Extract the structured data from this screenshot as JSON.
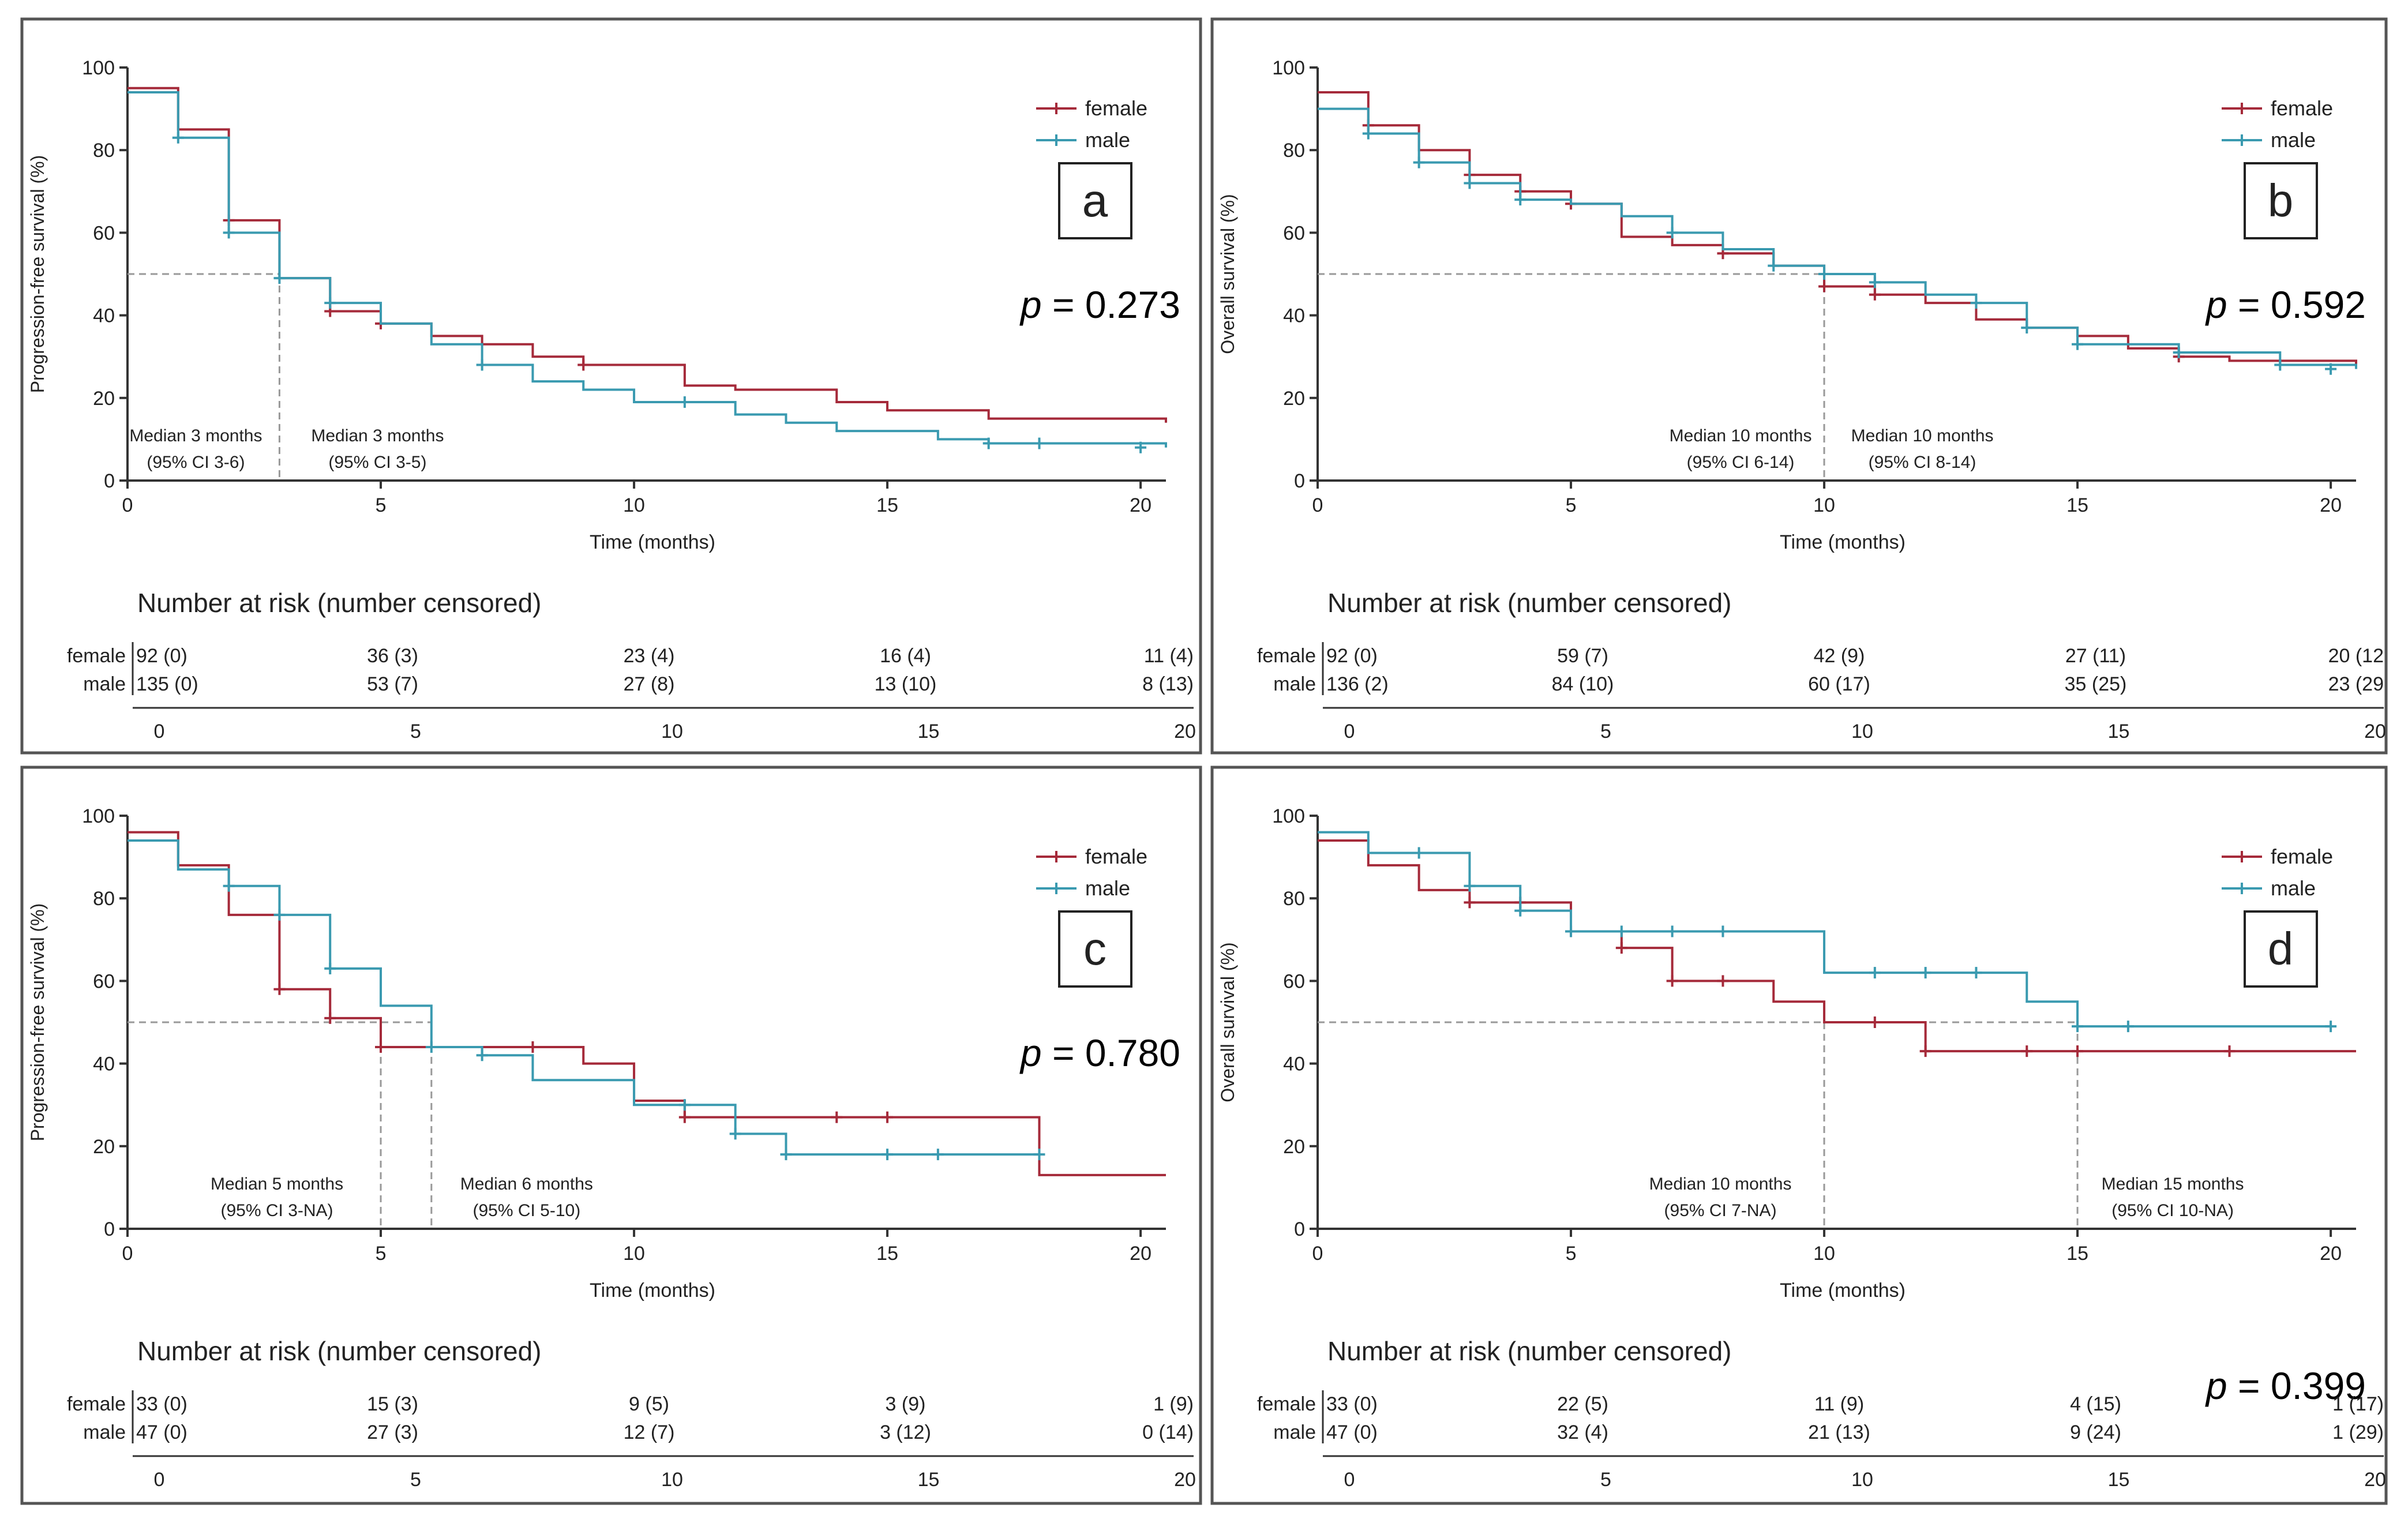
{
  "colors": {
    "female": "#a52a3a",
    "male": "#3a9ab0",
    "median_line": "#999999",
    "text": "#222222"
  },
  "chart_data": [
    {
      "type": "line",
      "panel": "a",
      "ylabel": "Progression-free survival (%)",
      "xlabel": "Time (months)",
      "xlim": [
        0,
        20.5
      ],
      "ylim": [
        0,
        100
      ],
      "xticks": [
        "0",
        "5",
        "10",
        "15",
        "20"
      ],
      "yticks": [
        "0",
        "20",
        "40",
        "60",
        "80",
        "100"
      ],
      "legend": {
        "female": "female",
        "male": "male",
        "position": "top-right"
      },
      "pvalue_prefix": "p",
      "pvalue": "= 0.273",
      "median_y": 50,
      "medians": [
        {
          "x": 3,
          "line1": "Median 3 months",
          "line2": "(95% CI 3-6)"
        },
        {
          "x": 3,
          "line1": "Median 3 months",
          "line2": "(95% CI 3-5)"
        }
      ],
      "series": [
        {
          "name": "female",
          "steps": [
            [
              0,
              95
            ],
            [
              1,
              85
            ],
            [
              2,
              63
            ],
            [
              3,
              49
            ],
            [
              4,
              41
            ],
            [
              5,
              38
            ],
            [
              6,
              35
            ],
            [
              7,
              33
            ],
            [
              8,
              30
            ],
            [
              9,
              28
            ],
            [
              11,
              23
            ],
            [
              12,
              22
            ],
            [
              14,
              19
            ],
            [
              15,
              17
            ],
            [
              17,
              15
            ],
            [
              20.5,
              14
            ]
          ],
          "censored": [
            [
              2,
              63
            ],
            [
              4,
              41
            ],
            [
              5,
              38
            ],
            [
              9,
              28
            ]
          ]
        },
        {
          "name": "male",
          "steps": [
            [
              0,
              94
            ],
            [
              1,
              83
            ],
            [
              2,
              60
            ],
            [
              3,
              49
            ],
            [
              4,
              43
            ],
            [
              5,
              38
            ],
            [
              6,
              33
            ],
            [
              7,
              28
            ],
            [
              8,
              24
            ],
            [
              9,
              22
            ],
            [
              10,
              19
            ],
            [
              12,
              16
            ],
            [
              13,
              14
            ],
            [
              14,
              12
            ],
            [
              16,
              10
            ],
            [
              17,
              9
            ],
            [
              20.5,
              8
            ]
          ],
          "censored": [
            [
              1,
              83
            ],
            [
              2,
              60
            ],
            [
              3,
              49
            ],
            [
              4,
              43
            ],
            [
              7,
              28
            ],
            [
              11,
              19
            ],
            [
              17,
              9
            ],
            [
              18,
              9
            ],
            [
              20,
              8
            ]
          ]
        }
      ],
      "risk": {
        "title": "Number at risk (number censored)",
        "female_label": "female",
        "male_label": "male",
        "female": [
          "92 (0)",
          "36 (3)",
          "23 (4)",
          "16 (4)",
          "11 (4)"
        ],
        "male": [
          "135 (0)",
          "53 (7)",
          "27 (8)",
          "13 (10)",
          "8 (13)"
        ],
        "xticks": [
          "0",
          "5",
          "10",
          "15",
          "20"
        ]
      }
    },
    {
      "type": "line",
      "panel": "b",
      "ylabel": "Overall survival (%)",
      "xlabel": "Time (months)",
      "xlim": [
        0,
        20.5
      ],
      "ylim": [
        0,
        100
      ],
      "xticks": [
        "0",
        "5",
        "10",
        "15",
        "20"
      ],
      "yticks": [
        "0",
        "20",
        "40",
        "60",
        "80",
        "100"
      ],
      "legend": {
        "female": "female",
        "male": "male",
        "position": "top-right"
      },
      "pvalue_prefix": "p",
      "pvalue": "= 0.592",
      "median_y": 50,
      "medians": [
        {
          "x": 10,
          "line1": "Median 10 months",
          "line2": "(95% CI 6-14)"
        },
        {
          "x": 10,
          "line1": "Median 10 months",
          "line2": "(95% CI 8-14)"
        }
      ],
      "series": [
        {
          "name": "female",
          "steps": [
            [
              0,
              94
            ],
            [
              1,
              86
            ],
            [
              2,
              80
            ],
            [
              3,
              74
            ],
            [
              4,
              70
            ],
            [
              5,
              67
            ],
            [
              6,
              59
            ],
            [
              7,
              57
            ],
            [
              8,
              55
            ],
            [
              9,
              52
            ],
            [
              10,
              47
            ],
            [
              11,
              45
            ],
            [
              12,
              43
            ],
            [
              13,
              39
            ],
            [
              14,
              37
            ],
            [
              15,
              35
            ],
            [
              16,
              32
            ],
            [
              17,
              30
            ],
            [
              18,
              29
            ],
            [
              20.5,
              28
            ]
          ],
          "censored": [
            [
              1,
              86
            ],
            [
              3,
              74
            ],
            [
              4,
              70
            ],
            [
              5,
              67
            ],
            [
              8,
              55
            ],
            [
              10,
              47
            ],
            [
              11,
              45
            ],
            [
              17,
              30
            ]
          ]
        },
        {
          "name": "male",
          "steps": [
            [
              0,
              90
            ],
            [
              1,
              84
            ],
            [
              2,
              77
            ],
            [
              3,
              72
            ],
            [
              4,
              68
            ],
            [
              5,
              67
            ],
            [
              6,
              64
            ],
            [
              7,
              60
            ],
            [
              8,
              56
            ],
            [
              9,
              52
            ],
            [
              10,
              50
            ],
            [
              11,
              48
            ],
            [
              12,
              45
            ],
            [
              13,
              43
            ],
            [
              14,
              37
            ],
            [
              15,
              33
            ],
            [
              17,
              31
            ],
            [
              19,
              28
            ],
            [
              20.5,
              27
            ]
          ],
          "censored": [
            [
              1,
              84
            ],
            [
              2,
              77
            ],
            [
              3,
              72
            ],
            [
              4,
              68
            ],
            [
              7,
              60
            ],
            [
              9,
              52
            ],
            [
              10,
              50
            ],
            [
              11,
              48
            ],
            [
              13,
              43
            ],
            [
              14,
              37
            ],
            [
              15,
              33
            ],
            [
              17,
              31
            ],
            [
              19,
              28
            ],
            [
              20,
              27
            ]
          ]
        }
      ],
      "risk": {
        "title": "Number at risk (number censored)",
        "female_label": "female",
        "male_label": "male",
        "female": [
          "92 (0)",
          "59 (7)",
          "42 (9)",
          "27 (11)",
          "20 (12"
        ],
        "male": [
          "136 (2)",
          "84 (10)",
          "60 (17)",
          "35 (25)",
          "23 (29"
        ],
        "xticks": [
          "0",
          "5",
          "10",
          "15",
          "20"
        ]
      }
    },
    {
      "type": "line",
      "panel": "c",
      "ylabel": "Progression-free survival (%)",
      "xlabel": "Time (months)",
      "xlim": [
        0,
        20.5
      ],
      "ylim": [
        0,
        100
      ],
      "xticks": [
        "0",
        "5",
        "10",
        "15",
        "20"
      ],
      "yticks": [
        "0",
        "20",
        "40",
        "60",
        "80",
        "100"
      ],
      "legend": {
        "female": "female",
        "male": "male",
        "position": "top-right"
      },
      "pvalue_prefix": "p",
      "pvalue": "= 0.780",
      "median_y": 50,
      "medians": [
        {
          "x": 5,
          "line1": "Median 5 months",
          "line2": "(95% CI 3-NA)"
        },
        {
          "x": 6,
          "line1": "Median 6 months",
          "line2": "(95% CI 5-10)"
        }
      ],
      "series": [
        {
          "name": "female",
          "steps": [
            [
              0,
              96
            ],
            [
              1,
              88
            ],
            [
              2,
              76
            ],
            [
              3,
              58
            ],
            [
              4,
              51
            ],
            [
              5,
              44
            ],
            [
              6,
              44
            ],
            [
              8,
              44
            ],
            [
              9,
              40
            ],
            [
              10,
              31
            ],
            [
              11,
              27
            ],
            [
              15,
              27
            ],
            [
              18,
              13
            ],
            [
              20.5,
              13
            ]
          ],
          "censored": [
            [
              3,
              58
            ],
            [
              4,
              51
            ],
            [
              5,
              44
            ],
            [
              8,
              44
            ],
            [
              11,
              27
            ],
            [
              14,
              27
            ],
            [
              15,
              27
            ]
          ]
        },
        {
          "name": "male",
          "steps": [
            [
              0,
              94
            ],
            [
              1,
              87
            ],
            [
              2,
              83
            ],
            [
              3,
              76
            ],
            [
              4,
              63
            ],
            [
              5,
              54
            ],
            [
              6,
              44
            ],
            [
              7,
              42
            ],
            [
              8,
              36
            ],
            [
              10,
              30
            ],
            [
              11,
              30
            ],
            [
              12,
              23
            ],
            [
              13,
              18
            ],
            [
              18,
              18
            ]
          ],
          "censored": [
            [
              2,
              83
            ],
            [
              3,
              76
            ],
            [
              4,
              63
            ],
            [
              6,
              44
            ],
            [
              7,
              42
            ],
            [
              11,
              30
            ],
            [
              12,
              23
            ],
            [
              13,
              18
            ],
            [
              15,
              18
            ],
            [
              16,
              18
            ],
            [
              18,
              18
            ]
          ]
        }
      ],
      "risk": {
        "title": "Number at risk (number censored)",
        "female_label": "female",
        "male_label": "male",
        "female": [
          "33 (0)",
          "15 (3)",
          "9 (5)",
          "3 (9)",
          "1 (9)"
        ],
        "male": [
          "47 (0)",
          "27 (3)",
          "12 (7)",
          "3 (12)",
          "0 (14)"
        ],
        "xticks": [
          "0",
          "5",
          "10",
          "15",
          "20"
        ]
      }
    },
    {
      "type": "line",
      "panel": "d",
      "ylabel": "Overall survival (%)",
      "xlabel": "Time (months)",
      "xlim": [
        0,
        20.5
      ],
      "ylim": [
        0,
        100
      ],
      "xticks": [
        "0",
        "5",
        "10",
        "15",
        "20"
      ],
      "yticks": [
        "0",
        "20",
        "40",
        "60",
        "80",
        "100"
      ],
      "legend": {
        "female": "female",
        "male": "male",
        "position": "top-right"
      },
      "pvalue_prefix": "p",
      "pvalue": "= 0.399",
      "median_y": 50,
      "medians": [
        {
          "x": 10,
          "line1": "Median 10 months",
          "line2": "(95% CI 7-NA)"
        },
        {
          "x": 15,
          "line1": "Median 15 months",
          "line2": "(95% CI 10-NA)"
        }
      ],
      "series": [
        {
          "name": "female",
          "steps": [
            [
              0,
              94
            ],
            [
              1,
              88
            ],
            [
              2,
              82
            ],
            [
              3,
              79
            ],
            [
              5,
              72
            ],
            [
              6,
              68
            ],
            [
              7,
              60
            ],
            [
              9,
              55
            ],
            [
              10,
              50
            ],
            [
              12,
              43
            ],
            [
              20.5,
              43
            ]
          ],
          "censored": [
            [
              3,
              79
            ],
            [
              4,
              79
            ],
            [
              5,
              72
            ],
            [
              6,
              68
            ],
            [
              7,
              60
            ],
            [
              8,
              60
            ],
            [
              11,
              50
            ],
            [
              12,
              43
            ],
            [
              14,
              43
            ],
            [
              15,
              43
            ],
            [
              18,
              43
            ]
          ]
        },
        {
          "name": "male",
          "steps": [
            [
              0,
              96
            ],
            [
              1,
              91
            ],
            [
              3,
              83
            ],
            [
              4,
              77
            ],
            [
              5,
              72
            ],
            [
              7,
              72
            ],
            [
              10,
              62
            ],
            [
              14,
              55
            ],
            [
              15,
              49
            ],
            [
              20,
              49
            ]
          ],
          "censored": [
            [
              2,
              91
            ],
            [
              3,
              83
            ],
            [
              4,
              77
            ],
            [
              5,
              72
            ],
            [
              6,
              72
            ],
            [
              7,
              72
            ],
            [
              8,
              72
            ],
            [
              11,
              62
            ],
            [
              12,
              62
            ],
            [
              13,
              62
            ],
            [
              15,
              49
            ],
            [
              16,
              49
            ],
            [
              20,
              49
            ]
          ]
        }
      ],
      "risk": {
        "title": "Number at risk (number censored)",
        "female_label": "female",
        "male_label": "male",
        "female": [
          "33 (0)",
          "22 (5)",
          "11 (9)",
          "4 (15)",
          "1 (17)"
        ],
        "male": [
          "47 (0)",
          "32 (4)",
          "21 (13)",
          "9 (24)",
          "1 (29)"
        ],
        "xticks": [
          "0",
          "5",
          "10",
          "15",
          "20"
        ]
      }
    }
  ]
}
